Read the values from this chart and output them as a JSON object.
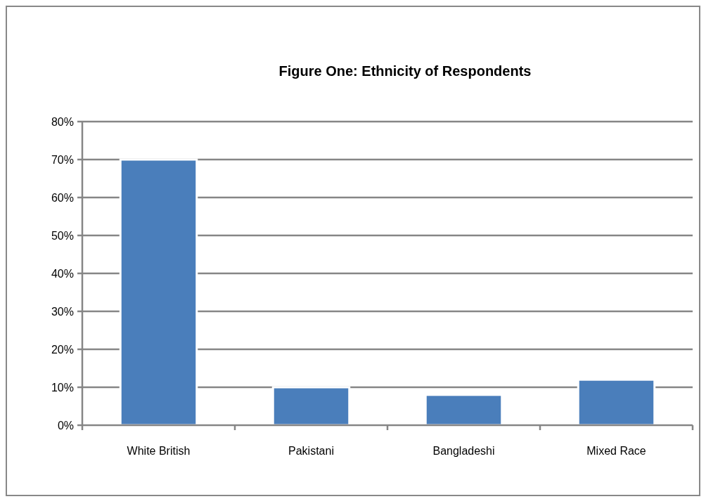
{
  "chart_data": {
    "type": "bar",
    "title": "Figure One: Ethnicity of Respondents",
    "categories": [
      "White British",
      "Pakistani",
      "Bangladeshi",
      "Mixed Race"
    ],
    "values": [
      70,
      10,
      8,
      12
    ],
    "color": "#4a7ebb",
    "ylim": [
      0,
      80
    ],
    "yticks": [
      {
        "value": 0,
        "label": "0%"
      },
      {
        "value": 10,
        "label": "10%"
      },
      {
        "value": 20,
        "label": "20%"
      },
      {
        "value": 30,
        "label": "30%"
      },
      {
        "value": 40,
        "label": "40%"
      },
      {
        "value": 50,
        "label": "50%"
      },
      {
        "value": 60,
        "label": "60%"
      },
      {
        "value": 70,
        "label": "70%"
      },
      {
        "value": 80,
        "label": "80%"
      }
    ],
    "grid": "y"
  }
}
